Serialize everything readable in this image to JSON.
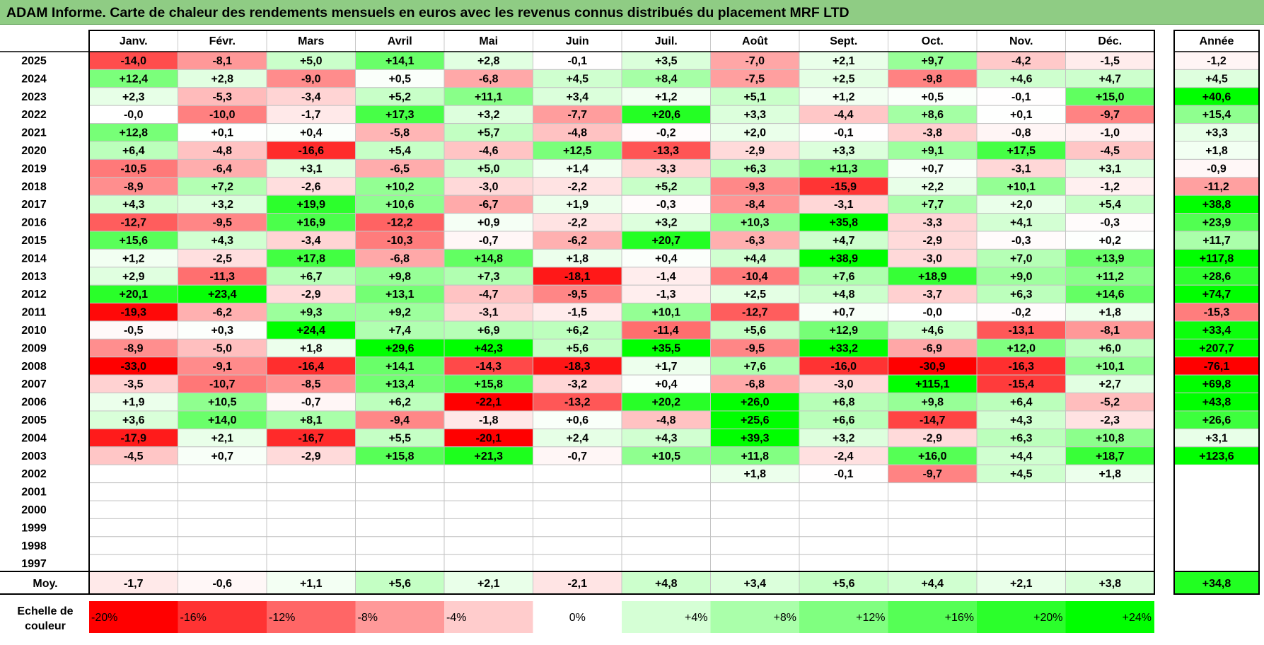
{
  "title": "ADAM Informe. Carte de chaleur des rendements mensuels en euros avec les revenus connus distribués du placement MRF LTD",
  "chart_data": {
    "type": "heatmap",
    "months": [
      "Janv.",
      "Févr.",
      "Mars",
      "Avril",
      "Mai",
      "Juin",
      "Juil.",
      "Août",
      "Sept.",
      "Oct.",
      "Nov.",
      "Déc."
    ],
    "year_column_label": "Année",
    "average_row_label": "Moy.",
    "years": [
      "2025",
      "2024",
      "2023",
      "2022",
      "2021",
      "2020",
      "2019",
      "2018",
      "2017",
      "2016",
      "2015",
      "2014",
      "2013",
      "2012",
      "2011",
      "2010",
      "2009",
      "2008",
      "2007",
      "2006",
      "2005",
      "2004",
      "2003",
      "2002",
      "2001",
      "2000",
      "1999",
      "1998",
      "1997"
    ],
    "values": [
      [
        "-14,0",
        "-8,1",
        "+5,0",
        "+14,1",
        "+2,8",
        "-0,1",
        "+3,5",
        "-7,0",
        "+2,1",
        "+9,7",
        "-4,2",
        "-1,5"
      ],
      [
        "+12,4",
        "+2,8",
        "-9,0",
        "+0,5",
        "-6,8",
        "+4,5",
        "+8,4",
        "-7,5",
        "+2,5",
        "-9,8",
        "+4,6",
        "+4,7"
      ],
      [
        "+2,3",
        "-5,3",
        "-3,4",
        "+5,2",
        "+11,1",
        "+3,4",
        "+1,2",
        "+5,1",
        "+1,2",
        "+0,5",
        "-0,1",
        "+15,0"
      ],
      [
        "-0,0",
        "-10,0",
        "-1,7",
        "+17,3",
        "+3,2",
        "-7,7",
        "+20,6",
        "+3,3",
        "-4,4",
        "+8,6",
        "+0,1",
        "-9,7"
      ],
      [
        "+12,8",
        "+0,1",
        "+0,4",
        "-5,8",
        "+5,7",
        "-4,8",
        "-0,2",
        "+2,0",
        "-0,1",
        "-3,8",
        "-0,8",
        "-1,0"
      ],
      [
        "+6,4",
        "-4,8",
        "-16,6",
        "+5,4",
        "-4,6",
        "+12,5",
        "-13,3",
        "-2,9",
        "+3,3",
        "+9,1",
        "+17,5",
        "-4,5"
      ],
      [
        "-10,5",
        "-6,4",
        "+3,1",
        "-6,5",
        "+5,0",
        "+1,4",
        "-3,3",
        "+6,3",
        "+11,3",
        "+0,7",
        "-3,1",
        "+3,1"
      ],
      [
        "-8,9",
        "+7,2",
        "-2,6",
        "+10,2",
        "-3,0",
        "-2,2",
        "+5,2",
        "-9,3",
        "-15,9",
        "+2,2",
        "+10,1",
        "-1,2"
      ],
      [
        "+4,3",
        "+3,2",
        "+19,9",
        "+10,6",
        "-6,7",
        "+1,9",
        "-0,3",
        "-8,4",
        "-3,1",
        "+7,7",
        "+2,0",
        "+5,4"
      ],
      [
        "-12,7",
        "-9,5",
        "+16,9",
        "-12,2",
        "+0,9",
        "-2,2",
        "+3,2",
        "+10,3",
        "+35,8",
        "-3,3",
        "+4,1",
        "-0,3"
      ],
      [
        "+15,6",
        "+4,3",
        "-3,4",
        "-10,3",
        "-0,7",
        "-6,2",
        "+20,7",
        "-6,3",
        "+4,7",
        "-2,9",
        "-0,3",
        "+0,2"
      ],
      [
        "+1,2",
        "-2,5",
        "+17,8",
        "-6,8",
        "+14,8",
        "+1,8",
        "+0,4",
        "+4,4",
        "+38,9",
        "-3,0",
        "+7,0",
        "+13,9"
      ],
      [
        "+2,9",
        "-11,3",
        "+6,7",
        "+9,8",
        "+7,3",
        "-18,1",
        "-1,4",
        "-10,4",
        "+7,6",
        "+18,9",
        "+9,0",
        "+11,2"
      ],
      [
        "+20,1",
        "+23,4",
        "-2,9",
        "+13,1",
        "-4,7",
        "-9,5",
        "-1,3",
        "+2,5",
        "+4,8",
        "-3,7",
        "+6,3",
        "+14,6"
      ],
      [
        "-19,3",
        "-6,2",
        "+9,3",
        "+9,2",
        "-3,1",
        "-1,5",
        "+10,1",
        "-12,7",
        "+0,7",
        "-0,0",
        "-0,2",
        "+1,8"
      ],
      [
        "-0,5",
        "+0,3",
        "+24,4",
        "+7,4",
        "+6,9",
        "+6,2",
        "-11,4",
        "+5,6",
        "+12,9",
        "+4,6",
        "-13,1",
        "-8,1"
      ],
      [
        "-8,9",
        "-5,0",
        "+1,8",
        "+29,6",
        "+42,3",
        "+5,6",
        "+35,5",
        "-9,5",
        "+33,2",
        "-6,9",
        "+12,0",
        "+6,0"
      ],
      [
        "-33,0",
        "-9,1",
        "-16,4",
        "+14,1",
        "-14,3",
        "-18,3",
        "+1,7",
        "+7,6",
        "-16,0",
        "-30,9",
        "-16,3",
        "+10,1"
      ],
      [
        "-3,5",
        "-10,7",
        "-8,5",
        "+13,4",
        "+15,8",
        "-3,2",
        "+0,4",
        "-6,8",
        "-3,0",
        "+115,1",
        "-15,4",
        "+2,7"
      ],
      [
        "+1,9",
        "+10,5",
        "-0,7",
        "+6,2",
        "-22,1",
        "-13,2",
        "+20,2",
        "+26,0",
        "+6,8",
        "+9,8",
        "+6,4",
        "-5,2"
      ],
      [
        "+3,6",
        "+14,0",
        "+8,1",
        "-9,4",
        "-1,8",
        "+0,6",
        "-4,8",
        "+25,6",
        "+6,6",
        "-14,7",
        "+4,3",
        "-2,3"
      ],
      [
        "-17,9",
        "+2,1",
        "-16,7",
        "+5,5",
        "-20,1",
        "+2,4",
        "+4,3",
        "+39,3",
        "+3,2",
        "-2,9",
        "+6,3",
        "+10,8"
      ],
      [
        "-4,5",
        "+0,7",
        "-2,9",
        "+15,8",
        "+21,3",
        "-0,7",
        "+10,5",
        "+11,8",
        "-2,4",
        "+16,0",
        "+4,4",
        "+18,7"
      ],
      [
        "",
        "",
        "",
        "",
        "",
        "",
        "",
        "+1,8",
        "-0,1",
        "-9,7",
        "+4,5",
        "+1,8"
      ],
      [
        "",
        "",
        "",
        "",
        "",
        "",
        "",
        "",
        "",
        "",
        "",
        ""
      ],
      [
        "",
        "",
        "",
        "",
        "",
        "",
        "",
        "",
        "",
        "",
        "",
        ""
      ],
      [
        "",
        "",
        "",
        "",
        "",
        "",
        "",
        "",
        "",
        "",
        "",
        ""
      ],
      [
        "",
        "",
        "",
        "",
        "",
        "",
        "",
        "",
        "",
        "",
        "",
        ""
      ],
      [
        "",
        "",
        "",
        "",
        "",
        "",
        "",
        "",
        "",
        "",
        "",
        ""
      ]
    ],
    "year_totals": [
      "-1,2",
      "+4,5",
      "+40,6",
      "+15,4",
      "+3,3",
      "+1,8",
      "-0,9",
      "-11,2",
      "+38,8",
      "+23,9",
      "+11,7",
      "+117,8",
      "+28,6",
      "+74,7",
      "-15,3",
      "+33,4",
      "+207,7",
      "-76,1",
      "+69,8",
      "+43,8",
      "+26,6",
      "+3,1",
      "+123,6",
      "",
      "",
      "",
      "",
      "",
      ""
    ],
    "monthly_averages": [
      "-1,7",
      "-0,6",
      "+1,1",
      "+5,6",
      "+2,1",
      "-2,1",
      "+4,8",
      "+3,4",
      "+5,6",
      "+4,4",
      "+2,1",
      "+3,8"
    ],
    "overall_average": "+34,8",
    "scale_label": "Echelle de couleur",
    "scale_labels": [
      "-20%",
      "-16%",
      "-12%",
      "-8%",
      "-4%",
      "0%",
      "+4%",
      "+8%",
      "+12%",
      "+16%",
      "+20%",
      "+24%"
    ],
    "scale_values": [
      -20,
      -16,
      -12,
      -8,
      -4,
      0,
      4,
      8,
      12,
      16,
      20,
      24
    ],
    "colors": {
      "negative_max": "#ff0000",
      "neutral": "#ffffff",
      "positive_max": "#00ff00",
      "title_background": "#8fcc84"
    }
  }
}
